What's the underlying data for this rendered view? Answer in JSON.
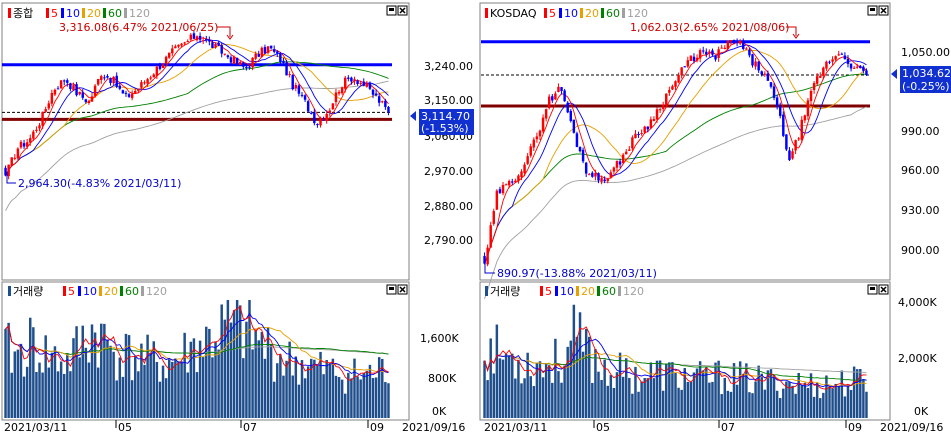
{
  "colors": {
    "ma5": "#ff0000",
    "ma10": "#0000ff",
    "ma20": "#e6a000",
    "ma60": "#008000",
    "ma120": "#a0a0a0",
    "up": "#ff0000",
    "down": "#0000ff",
    "volume": "#1f4e8c",
    "hline_blue": "#0000ff",
    "hline_dark": "#800000",
    "price_tag": "#1030d0"
  },
  "panels": {
    "kospi_price": {
      "legend_name": "종합",
      "legend_ma": [
        "5",
        "10",
        "20",
        "60",
        "120"
      ],
      "high_label": "3,316.08(6.47% 2021/06/25)",
      "low_label": "2,964.30(-4.83% 2021/03/11)",
      "current_price": "3,114.70",
      "current_change": "(-1.53%)",
      "y_ticks": [
        "3,240.00",
        "3,150.00",
        "3,060.00",
        "2,970.00",
        "2,880.00",
        "2,790.00"
      ]
    },
    "kosdaq_price": {
      "legend_name": "KOSDAQ",
      "legend_ma": [
        "5",
        "10",
        "20",
        "60",
        "120"
      ],
      "high_label": "1,062.03(2.65% 2021/08/06)",
      "low_label": "890.97(-13.88% 2021/03/11)",
      "current_price": "1,034.62",
      "current_change": "(-0.25%)",
      "y_ticks": [
        "1,050.00",
        "1,020.00",
        "990.00",
        "960.00",
        "930.00",
        "900.00"
      ]
    },
    "kospi_volume": {
      "legend_name": "거래량",
      "legend_ma": [
        "5",
        "10",
        "20",
        "60",
        "120"
      ],
      "y_ticks": [
        "1,600K",
        "800K",
        "0K"
      ]
    },
    "kosdaq_volume": {
      "legend_name": "거래량",
      "legend_ma": [
        "5",
        "10",
        "20",
        "60",
        "120"
      ],
      "y_ticks": [
        "4,000K",
        "2,000K",
        "0K"
      ]
    }
  },
  "x_axis": {
    "start_date": "2021/03/11",
    "ticks": [
      "05",
      "07",
      "09"
    ],
    "end_date": "2021/09/16"
  },
  "chart_data": [
    {
      "type": "candlestick",
      "title": "종합",
      "x_range": [
        "2021/03/11",
        "2021/09/16"
      ],
      "ylim": [
        2720,
        3330
      ],
      "horizontal_lines": [
        3228,
        3098
      ],
      "high": 3316.08,
      "low": 2964.3,
      "last": 3114.7,
      "close_path": [
        2965,
        3030,
        3050,
        3100,
        3170,
        3195,
        3160,
        3140,
        3210,
        3190,
        3150,
        3170,
        3200,
        3230,
        3260,
        3280,
        3300,
        3280,
        3260,
        3240,
        3220,
        3250,
        3270,
        3240,
        3180,
        3140,
        3090,
        3120,
        3180,
        3200,
        3180,
        3150,
        3115
      ]
    },
    {
      "type": "candlestick",
      "title": "KOSDAQ",
      "x_range": [
        "2021/03/11",
        "2021/09/16"
      ],
      "ylim": [
        880,
        1075
      ],
      "horizontal_lines": [
        1060,
        1011
      ],
      "high": 1062.03,
      "low": 890.97,
      "last": 1034.62,
      "close_path": [
        891,
        945,
        952,
        965,
        985,
        1015,
        1025,
        990,
        962,
        955,
        960,
        975,
        990,
        998,
        1015,
        1030,
        1045,
        1052,
        1048,
        1058,
        1060,
        1045,
        1035,
        1010,
        968,
        1000,
        1030,
        1045,
        1052,
        1040,
        1035
      ]
    },
    {
      "type": "bar",
      "title": "거래량",
      "ylim": [
        0,
        2000
      ],
      "unit": "K",
      "values": [
        1150,
        1050,
        1250,
        1100,
        1000,
        950,
        1200,
        1450,
        1300,
        1100,
        1050,
        1000,
        950,
        900,
        1000,
        1150,
        1250,
        1400,
        1550,
        1500,
        1350,
        1200,
        1050,
        950,
        900,
        850,
        800,
        760,
        740,
        720,
        760,
        820
      ]
    },
    {
      "type": "bar",
      "title": "거래량",
      "ylim": [
        0,
        4500
      ],
      "unit": "K",
      "values": [
        2600,
        2500,
        2300,
        2200,
        2000,
        2100,
        2200,
        3000,
        2600,
        2000,
        1800,
        1700,
        1600,
        1650,
        1700,
        1600,
        1550,
        1500,
        1550,
        1600,
        1500,
        1450,
        1400,
        1380,
        1350,
        1300,
        1280,
        1300,
        1350,
        1400,
        1420
      ]
    }
  ]
}
